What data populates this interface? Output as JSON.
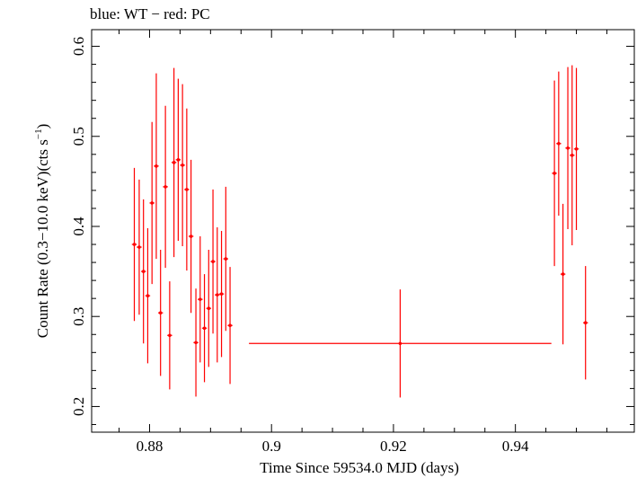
{
  "chart_data": {
    "type": "scatter",
    "title": "blue: WT − red: PC",
    "xlabel": "Time Since 59534.0 MJD (days)",
    "ylabel_main": "Count Rate (0.3−10.0 keV)(cts s",
    "ylabel_sup": "−1",
    "ylabel_end": ")",
    "xlim": [
      0.8705,
      0.9595
    ],
    "ylim": [
      0.1715,
      0.6185
    ],
    "xticks": [
      0.88,
      0.9,
      0.92,
      0.94
    ],
    "xtick_labels": [
      "0.88",
      "0.9",
      "0.92",
      "0.94"
    ],
    "yticks": [
      0.2,
      0.3,
      0.4,
      0.5,
      0.6
    ],
    "ytick_labels": [
      "0.2",
      "0.3",
      "0.4",
      "0.5",
      "0.6"
    ],
    "colors": {
      "PC": "#ff0000",
      "WT": "#0000ff",
      "axes": "#000000"
    },
    "series": [
      {
        "name": "PC",
        "points": [
          {
            "x": 0.8775,
            "y": 0.38,
            "xerr": 0.0004,
            "yerr": 0.085
          },
          {
            "x": 0.8783,
            "y": 0.377,
            "xerr": 0.0004,
            "yerr": 0.075
          },
          {
            "x": 0.879,
            "y": 0.35,
            "xerr": 0.0004,
            "yerr": 0.08
          },
          {
            "x": 0.8797,
            "y": 0.323,
            "xerr": 0.0004,
            "yerr": 0.075
          },
          {
            "x": 0.8804,
            "y": 0.426,
            "xerr": 0.0004,
            "yerr": 0.09
          },
          {
            "x": 0.8811,
            "y": 0.467,
            "xerr": 0.0004,
            "yerr": 0.103
          },
          {
            "x": 0.8818,
            "y": 0.304,
            "xerr": 0.0004,
            "yerr": 0.07
          },
          {
            "x": 0.8826,
            "y": 0.444,
            "xerr": 0.0004,
            "yerr": 0.09
          },
          {
            "x": 0.8833,
            "y": 0.279,
            "xerr": 0.0004,
            "yerr": 0.06
          },
          {
            "x": 0.884,
            "y": 0.471,
            "xerr": 0.0004,
            "yerr": 0.105
          },
          {
            "x": 0.8847,
            "y": 0.474,
            "xerr": 0.0004,
            "yerr": 0.09
          },
          {
            "x": 0.8854,
            "y": 0.468,
            "xerr": 0.0004,
            "yerr": 0.09
          },
          {
            "x": 0.8861,
            "y": 0.441,
            "xerr": 0.0004,
            "yerr": 0.09
          },
          {
            "x": 0.8868,
            "y": 0.389,
            "xerr": 0.0004,
            "yerr": 0.085
          },
          {
            "x": 0.8876,
            "y": 0.271,
            "xerr": 0.0004,
            "yerr": 0.06
          },
          {
            "x": 0.8883,
            "y": 0.319,
            "xerr": 0.0004,
            "yerr": 0.07
          },
          {
            "x": 0.889,
            "y": 0.287,
            "xerr": 0.0004,
            "yerr": 0.06
          },
          {
            "x": 0.8897,
            "y": 0.309,
            "xerr": 0.0004,
            "yerr": 0.065
          },
          {
            "x": 0.8904,
            "y": 0.361,
            "xerr": 0.0004,
            "yerr": 0.08
          },
          {
            "x": 0.8911,
            "y": 0.324,
            "xerr": 0.0004,
            "yerr": 0.075
          },
          {
            "x": 0.8918,
            "y": 0.325,
            "xerr": 0.0004,
            "yerr": 0.07
          },
          {
            "x": 0.8925,
            "y": 0.364,
            "xerr": 0.0004,
            "yerr": 0.08
          },
          {
            "x": 0.8932,
            "y": 0.29,
            "xerr": 0.0004,
            "yerr": 0.065
          },
          {
            "x": 0.9211,
            "y": 0.27,
            "xerr": 0.0248,
            "yerr": 0.06
          },
          {
            "x": 0.9464,
            "y": 0.459,
            "xerr": 0.0004,
            "yerr": 0.103
          },
          {
            "x": 0.9471,
            "y": 0.492,
            "xerr": 0.0004,
            "yerr": 0.08
          },
          {
            "x": 0.9478,
            "y": 0.347,
            "xerr": 0.0004,
            "yerr": 0.078
          },
          {
            "x": 0.9486,
            "y": 0.487,
            "xerr": 0.0004,
            "yerr": 0.09
          },
          {
            "x": 0.9493,
            "y": 0.479,
            "xerr": 0.0004,
            "yerr": 0.1
          },
          {
            "x": 0.95,
            "y": 0.486,
            "xerr": 0.0004,
            "yerr": 0.09
          },
          {
            "x": 0.9515,
            "y": 0.293,
            "xerr": 0.0004,
            "yerr": 0.063
          }
        ]
      }
    ]
  }
}
